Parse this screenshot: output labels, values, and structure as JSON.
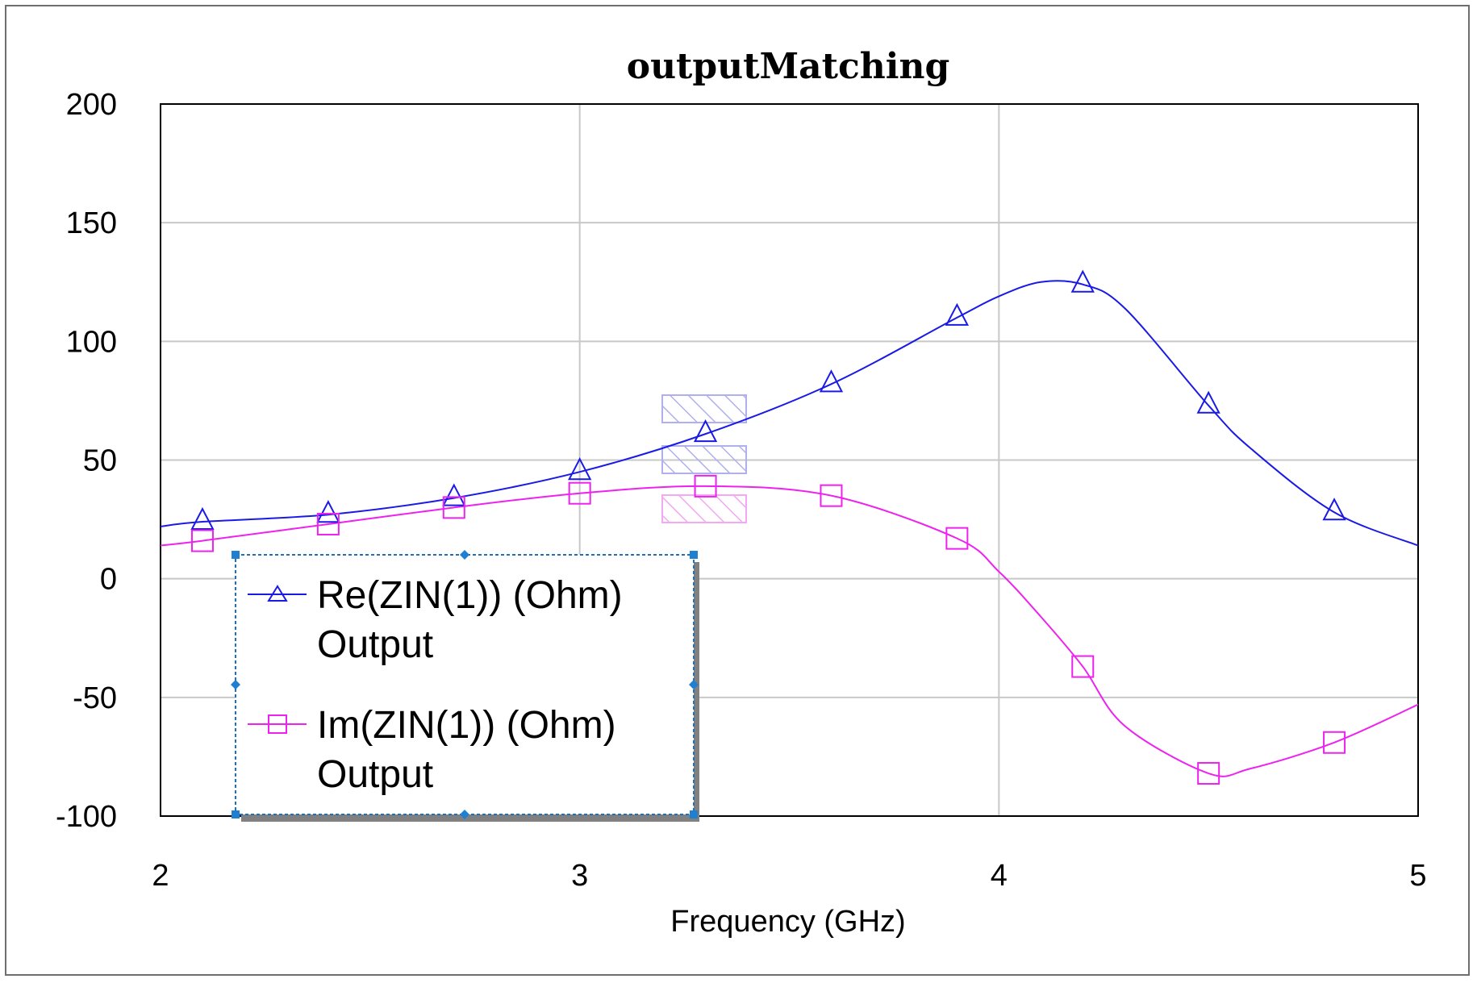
{
  "chart_data": {
    "type": "line",
    "title": "outputMatching",
    "xlabel": "Frequency (GHz)",
    "ylabel": "",
    "xlim": [
      2,
      5
    ],
    "ylim": [
      -100,
      200
    ],
    "xticks": [
      "2",
      "3",
      "4",
      "5"
    ],
    "yticks": [
      "200",
      "150",
      "100",
      "50",
      "0",
      "-50",
      "-100"
    ],
    "xtick_values": [
      2,
      3,
      4,
      5
    ],
    "ytick_values": [
      200,
      150,
      100,
      50,
      0,
      -50,
      -100
    ],
    "grid": true,
    "legend_position": "bottom-left",
    "series": [
      {
        "name": "Re(ZIN(1)) (Ohm)",
        "legend_line2": "Output",
        "color": "#1a1ae6",
        "marker": "triangle",
        "x": [
          2.0,
          2.1,
          2.4,
          2.7,
          3.0,
          3.3,
          3.6,
          3.9,
          4.0,
          4.1,
          4.2,
          4.3,
          4.5,
          4.6,
          4.8,
          5.0
        ],
        "y": [
          22,
          24,
          27,
          34,
          45,
          61,
          82,
          110,
          119,
          125,
          124,
          114,
          73,
          55,
          28,
          14
        ],
        "marker_x": [
          2.1,
          2.4,
          2.7,
          3.0,
          3.3,
          3.6,
          3.9,
          4.2,
          4.5,
          4.8
        ]
      },
      {
        "name": "Im(ZIN(1)) (Ohm)",
        "legend_line2": "Output",
        "color": "#ee22ee",
        "marker": "square",
        "x": [
          2.0,
          2.1,
          2.4,
          2.7,
          3.0,
          3.3,
          3.6,
          3.9,
          4.0,
          4.1,
          4.2,
          4.3,
          4.5,
          4.6,
          4.8,
          5.0
        ],
        "y": [
          14,
          16,
          23,
          30,
          36,
          39,
          35,
          17,
          3,
          -16,
          -37,
          -62,
          -82,
          -80,
          -69,
          -53
        ],
        "marker_x": [
          2.1,
          2.4,
          2.7,
          3.0,
          3.3,
          3.6,
          3.9,
          4.2,
          4.5,
          4.8
        ]
      }
    ]
  }
}
